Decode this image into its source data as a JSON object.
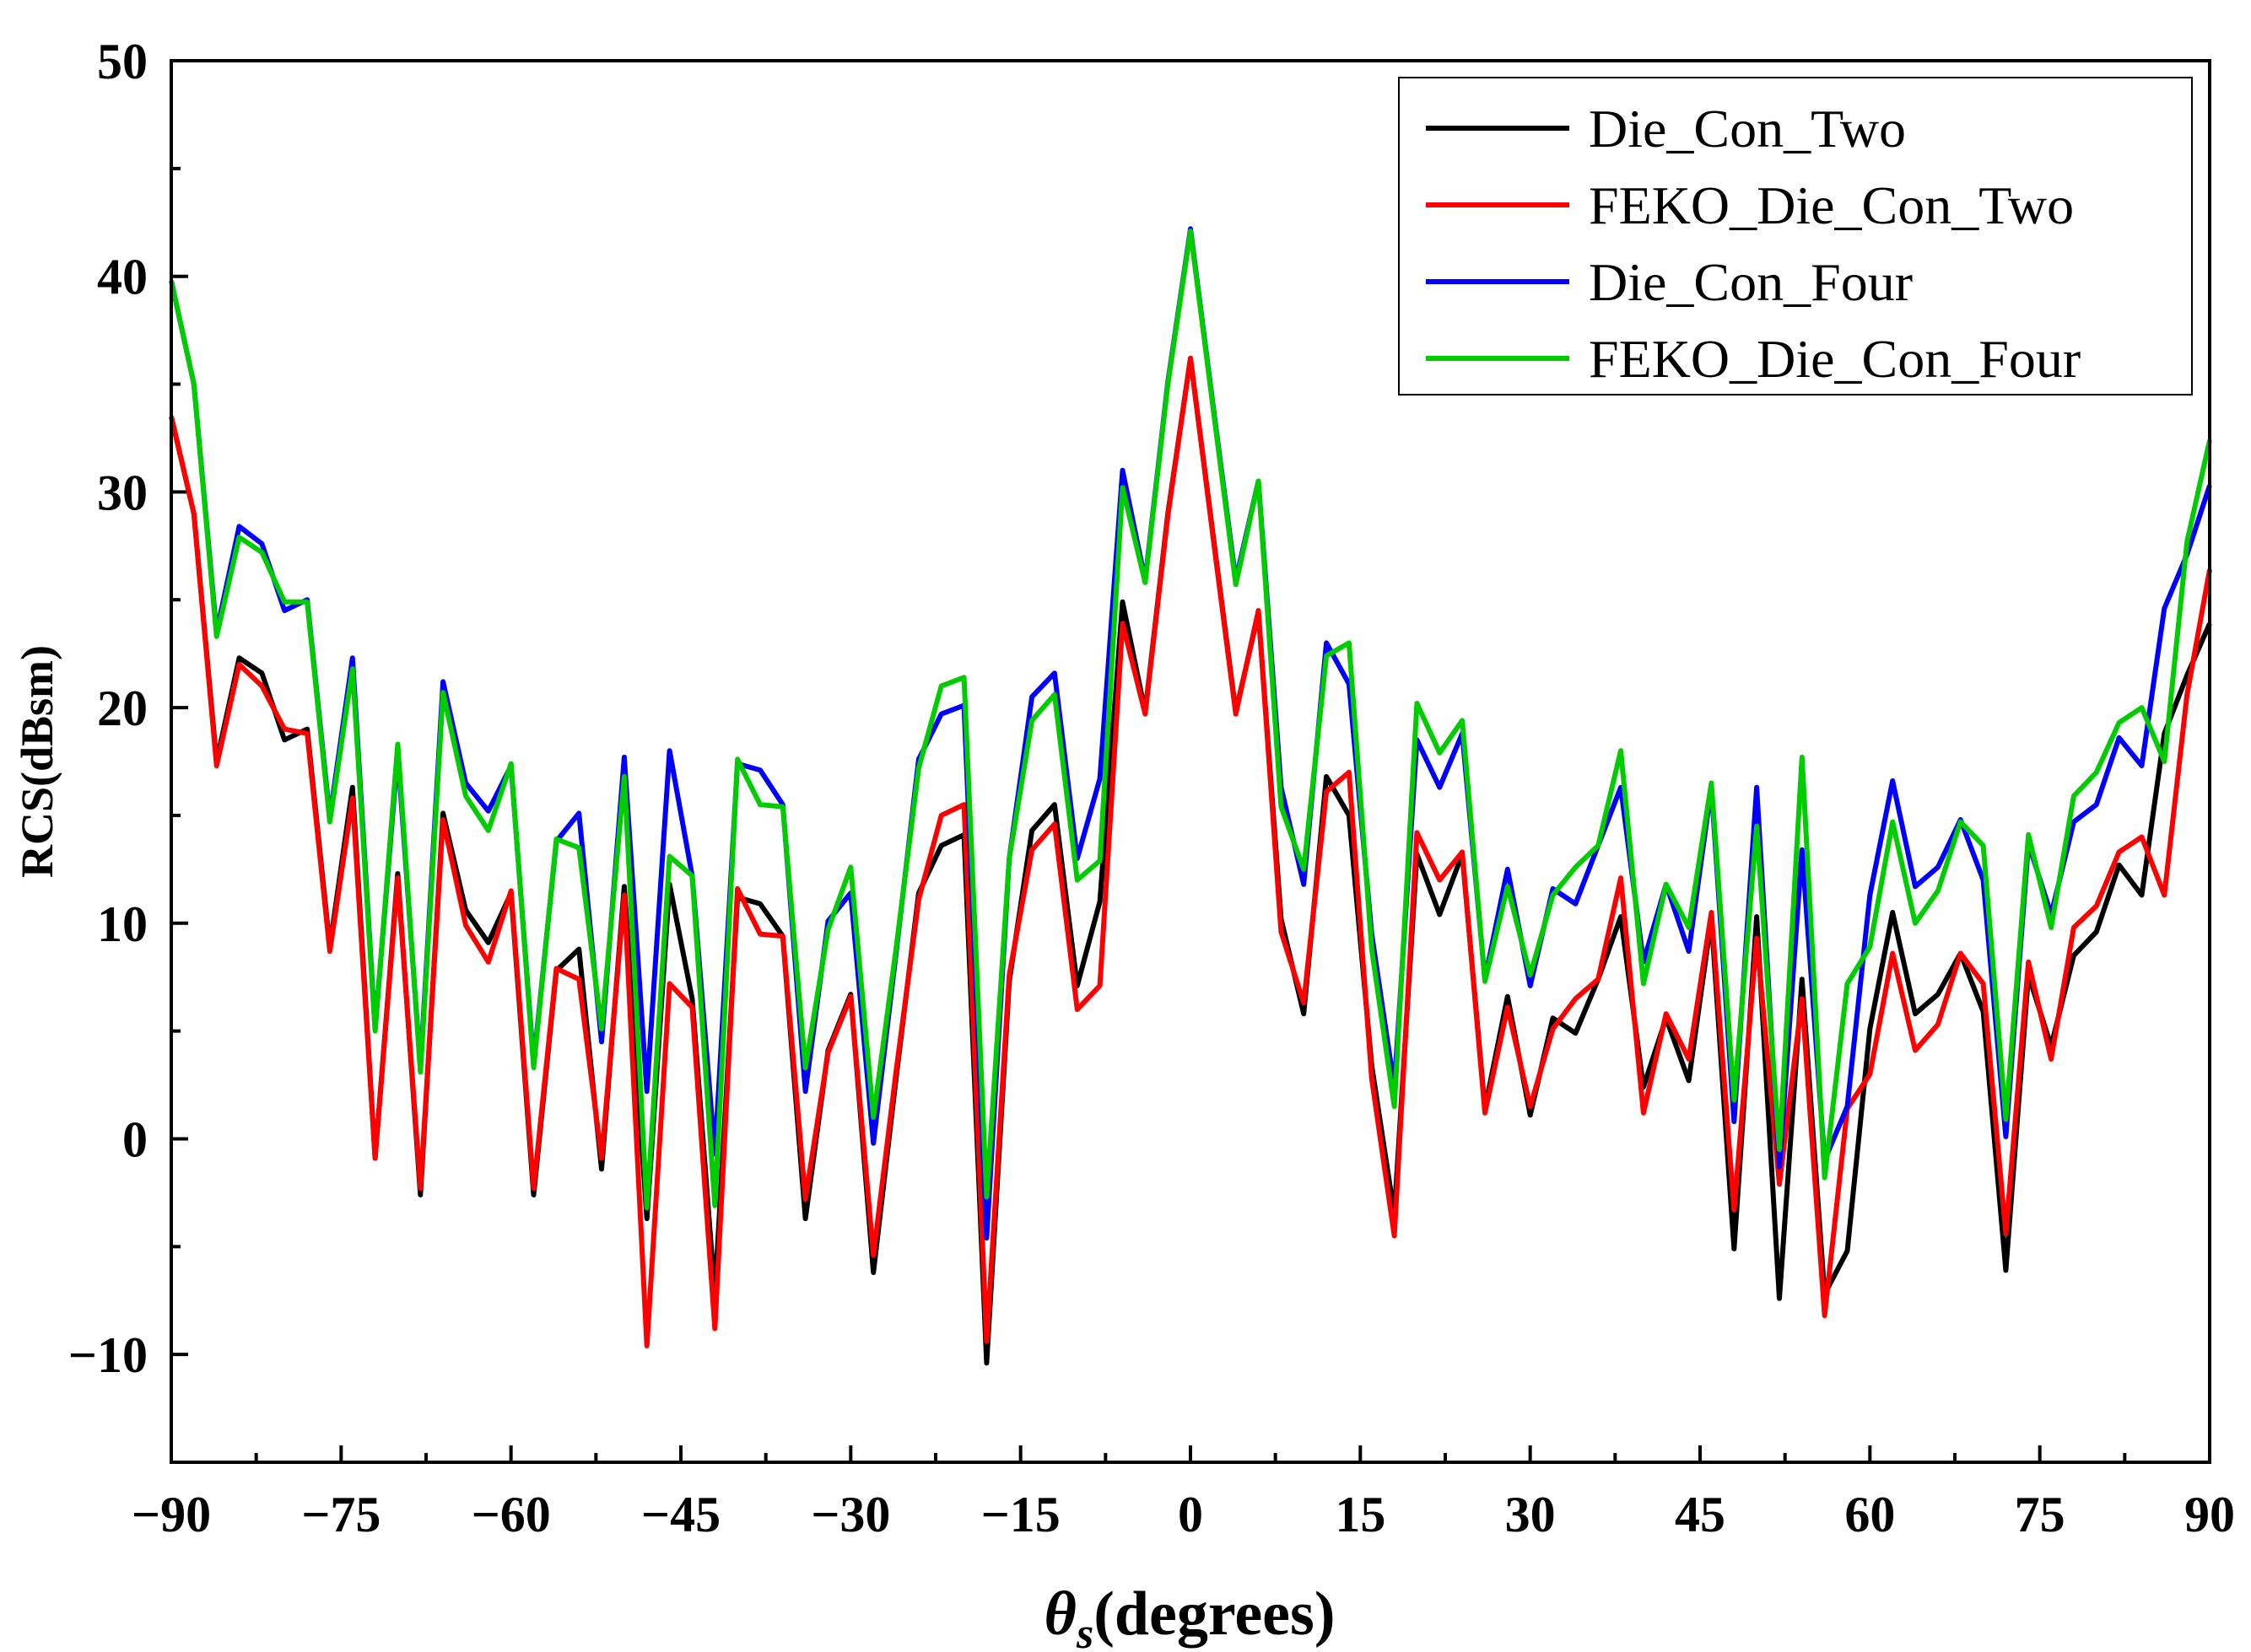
{
  "chart_data": {
    "type": "line",
    "ylabel": "RCS(dBsm)",
    "xlabel": {
      "symbol": "θ",
      "subscript": "s",
      "text": "(degrees)"
    },
    "xlim": [
      -90,
      90
    ],
    "ylim": [
      -15,
      50
    ],
    "xticks": [
      -90,
      -75,
      -60,
      -45,
      -30,
      -15,
      0,
      15,
      30,
      45,
      60,
      75,
      90
    ],
    "xtick_labels": [
      "−90",
      "−75",
      "−60",
      "−45",
      "−30",
      "−15",
      "0",
      "15",
      "30",
      "45",
      "60",
      "75",
      "90"
    ],
    "yticks": [
      -10,
      0,
      10,
      20,
      30,
      40,
      50
    ],
    "ytick_labels": [
      "−10",
      "0",
      "10",
      "20",
      "30",
      "40",
      "50"
    ],
    "legend_position": "top-right",
    "x": [
      -90,
      -88,
      -86,
      -84,
      -82,
      -80,
      -78,
      -76,
      -74,
      -72,
      -70,
      -68,
      -66,
      -64,
      -62,
      -60,
      -58,
      -56,
      -54,
      -52,
      -50,
      -48,
      -46,
      -44,
      -42,
      -40,
      -38,
      -36,
      -34,
      -32,
      -30,
      -28,
      -26,
      -24,
      -22,
      -20,
      -18,
      -16,
      -14,
      -12,
      -10,
      -8,
      -6,
      -4,
      -2,
      0,
      2,
      4,
      6,
      8,
      10,
      12,
      14,
      16,
      18,
      20,
      22,
      24,
      26,
      28,
      30,
      32,
      34,
      36,
      38,
      40,
      42,
      44,
      46,
      48,
      50,
      52,
      54,
      56,
      58,
      60,
      62,
      64,
      66,
      68,
      70,
      72,
      74,
      76,
      78,
      80,
      82,
      84,
      86,
      88,
      90
    ],
    "series": [
      {
        "name": "Die_Con_Two",
        "color": "#000000",
        "values": [
          33.5,
          29,
          17.5,
          22.3,
          21.6,
          18.5,
          19,
          8.9,
          16.3,
          -0.9,
          12.3,
          -2.6,
          15.1,
          10.6,
          9.1,
          11.4,
          -2.6,
          7.8,
          8.8,
          -1.4,
          11.7,
          -3.7,
          11.8,
          6.5,
          -7.2,
          11.2,
          10.9,
          9.4,
          -3.7,
          4.1,
          6.7,
          -6.2,
          2.8,
          11.4,
          13.6,
          14.1,
          -10.4,
          7.3,
          14.3,
          15.5,
          7.1,
          11,
          24.9,
          19.8,
          29,
          36.2,
          28,
          19.8,
          24.4,
          10.2,
          5.8,
          16.8,
          15,
          3.4,
          -3.5,
          13.2,
          10.4,
          13.2,
          1.4,
          6.6,
          1.1,
          5.6,
          4.9,
          7.4,
          10.3,
          2.4,
          5.6,
          2.7,
          10.2,
          -5.1,
          10.3,
          -7.4,
          7.4,
          -7.2,
          -5.2,
          5.1,
          10.5,
          5.8,
          6.7,
          8.6,
          5.9,
          -6.1,
          7.6,
          4.3,
          8.5,
          9.6,
          12.7,
          11.3,
          18.8,
          21.5,
          23.9
        ]
      },
      {
        "name": "FEKO_Die_Con_Two",
        "color": "#ff0000",
        "values": [
          33.5,
          29,
          17.3,
          22,
          21,
          19,
          18.8,
          8.7,
          15.8,
          -0.9,
          12.1,
          -2.3,
          14.8,
          9.9,
          8.2,
          11.5,
          -2.3,
          7.9,
          7.4,
          -0.9,
          11.3,
          -9.6,
          7.2,
          6.1,
          -8.8,
          11.6,
          9.5,
          9.4,
          -2.8,
          4,
          6.6,
          -5.4,
          3.1,
          11.1,
          15,
          15.5,
          -9.4,
          7.6,
          13.4,
          14.6,
          6,
          7.1,
          23.9,
          19.7,
          28.9,
          36.2,
          27.9,
          19.7,
          24.5,
          9.6,
          6.3,
          16.1,
          17,
          2.8,
          -4.5,
          14.2,
          12,
          13.3,
          1.2,
          6.1,
          1.5,
          5.1,
          6.5,
          7.4,
          12.1,
          1.2,
          5.8,
          3.7,
          10.5,
          -3.3,
          9.3,
          -2.1,
          6.5,
          -8.2,
          1.4,
          3,
          8.6,
          4.1,
          5.3,
          8.6,
          7.2,
          -4.4,
          8.2,
          3.7,
          9.8,
          10.8,
          13.3,
          14,
          11.3,
          20.6,
          26.4
        ]
      },
      {
        "name": "Die_Con_Four",
        "color": "#0000ff",
        "values": [
          39.8,
          35,
          23.5,
          28.4,
          27.6,
          24.5,
          25,
          14.9,
          22.3,
          5.1,
          17.9,
          3.3,
          21.2,
          16.5,
          15.2,
          17.3,
          3.5,
          13.8,
          15.1,
          4.5,
          17.7,
          2.2,
          18,
          12.2,
          -0.7,
          17.4,
          17.1,
          15.5,
          2.2,
          10.1,
          11.4,
          -0.2,
          8.6,
          17.6,
          19.7,
          20.1,
          -4.6,
          13,
          20.5,
          21.6,
          13,
          16.7,
          31,
          25.9,
          35.1,
          42.2,
          34,
          25.9,
          30.5,
          16.3,
          11.8,
          23,
          21.1,
          9.5,
          2.4,
          18.5,
          16.3,
          18.8,
          7.4,
          12.5,
          7.1,
          11.6,
          10.9,
          13.6,
          16.3,
          8.2,
          11.8,
          8.7,
          16.3,
          0.8,
          16.3,
          -1.3,
          13.4,
          -1,
          1.5,
          11.3,
          16.6,
          11.7,
          12.6,
          14.8,
          12,
          0.1,
          13.7,
          10.4,
          14.7,
          15.5,
          18.6,
          17.3,
          24.6,
          27.1,
          30.3
        ]
      },
      {
        "name": "FEKO_Die_Con_Four",
        "color": "#00cc00",
        "values": [
          39.8,
          35,
          23.3,
          27.9,
          27.2,
          24.9,
          24.9,
          14.7,
          21.8,
          5,
          18.3,
          3.1,
          20.7,
          15.9,
          14.3,
          17.4,
          3.3,
          13.9,
          13.5,
          5.1,
          16.8,
          -3.2,
          13.1,
          12.2,
          -3.1,
          17.6,
          15.5,
          15.4,
          3.3,
          9.7,
          12.6,
          1,
          8.8,
          17.2,
          21,
          21.4,
          -2.7,
          13,
          19.4,
          20.6,
          12,
          12.9,
          30.2,
          25.8,
          35,
          42.1,
          33.9,
          25.7,
          30.5,
          15.4,
          12.5,
          22.4,
          23,
          8.8,
          1.5,
          20.2,
          17.9,
          19.4,
          7.3,
          11.7,
          7.6,
          11.3,
          12.6,
          13.6,
          18,
          7.2,
          11.8,
          9.8,
          16.5,
          1.8,
          14.5,
          -0.5,
          17.7,
          -1.8,
          7.2,
          8.9,
          14.7,
          10,
          11.5,
          14.7,
          13.6,
          0.9,
          14.1,
          9.8,
          15.9,
          17,
          19.3,
          20,
          17.5,
          27.7,
          32.4
        ]
      }
    ]
  }
}
